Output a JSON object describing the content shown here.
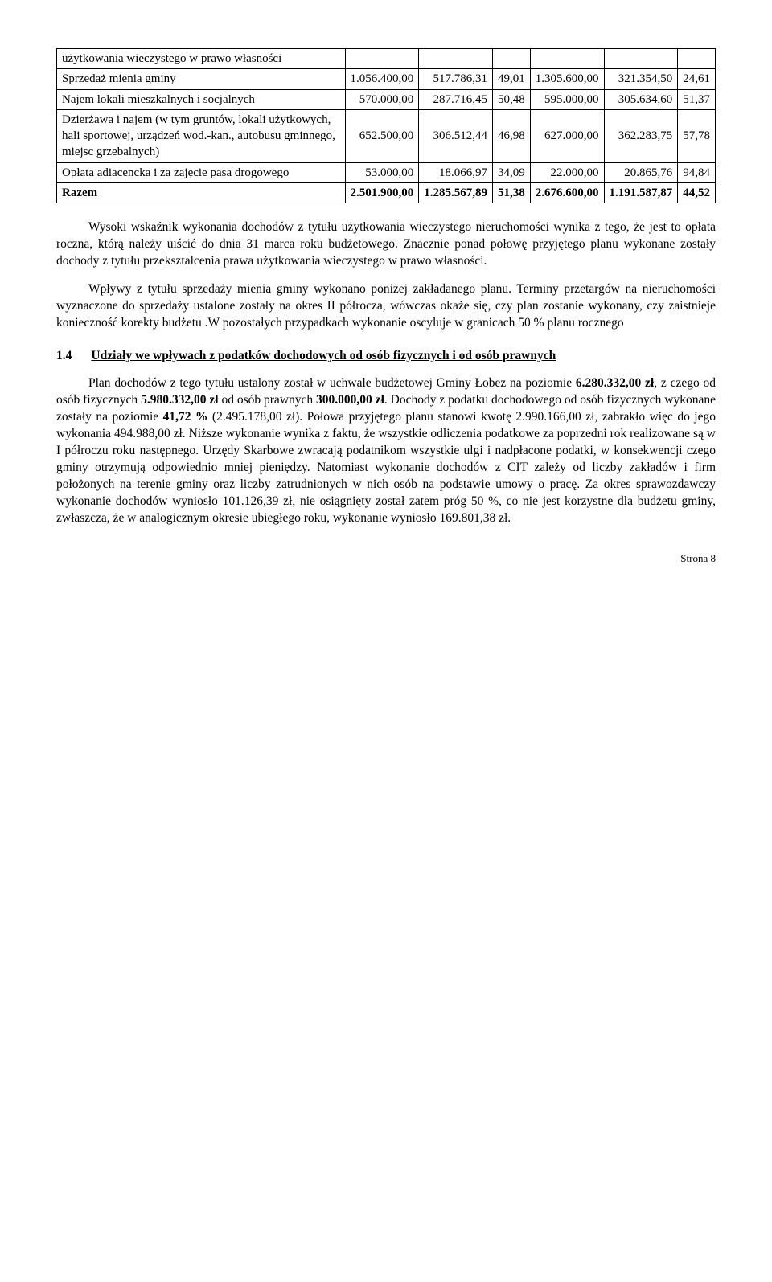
{
  "table": {
    "columns_count": 7,
    "col_align": [
      "left",
      "right",
      "right",
      "right",
      "right",
      "right",
      "right"
    ],
    "rows": [
      {
        "cells": [
          "użytkowania wieczystego w prawo własności",
          "",
          "",
          "",
          "",
          "",
          ""
        ]
      },
      {
        "cells": [
          "Sprzedaż mienia gminy",
          "1.056.400,00",
          "517.786,31",
          "49,01",
          "1.305.600,00",
          "321.354,50",
          "24,61"
        ]
      },
      {
        "cells": [
          "Najem lokali mieszkalnych i socjalnych",
          "570.000,00",
          "287.716,45",
          "50,48",
          "595.000,00",
          "305.634,60",
          "51,37"
        ]
      },
      {
        "cells": [
          "Dzierżawa i najem (w tym gruntów, lokali użytkowych, hali sportowej, urządzeń wod.-kan., autobusu gminnego, miejsc grzebalnych)",
          "652.500,00",
          "306.512,44",
          "46,98",
          "627.000,00",
          "362.283,75",
          "57,78"
        ]
      },
      {
        "cells": [
          "Opłata adiacencka i za zajęcie pasa drogowego",
          "53.000,00",
          "18.066,97",
          "34,09",
          "22.000,00",
          "20.865,76",
          "94,84"
        ]
      },
      {
        "cells": [
          "Razem",
          "2.501.900,00",
          "1.285.567,89",
          "51,38",
          "2.676.600,00",
          "1.191.587,87",
          "44,52"
        ],
        "bold": true
      }
    ]
  },
  "paragraphs": {
    "p1": "Wysoki wskaźnik wykonania dochodów z tytułu użytkowania wieczystego nieruchomości wynika z tego, że jest to opłata roczna, którą należy uiścić do dnia 31 marca roku budżetowego. Znacznie ponad połowę przyjętego planu wykonane zostały dochody z tytułu przekształcenia prawa użytkowania wieczystego w prawo własności.",
    "p2": "Wpływy z tytułu sprzedaży mienia gminy wykonano poniżej zakładanego planu. Terminy przetargów na nieruchomości wyznaczone do sprzedaży ustalone zostały na okres II półrocza, wówczas okaże się, czy plan zostanie wykonany, czy zaistnieje konieczność korekty budżetu .W pozostałych przypadkach wykonanie oscyluje w granicach 50 % planu rocznego"
  },
  "section": {
    "number": "1.4",
    "title_plain": "Udziały we wpływach z podatków dochodowych od osób fizycznych i od osób prawnych"
  },
  "paragraphs2": {
    "p3": "Plan dochodów z tego tytułu ustalony został w uchwale budżetowej Gminy Łobez na poziomie 6.280.332,00 zł, z czego od osób fizycznych 5.980.332,00 zł od osób prawnych 300.000,00 zł. Dochody z podatku dochodowego od osób fizycznych wykonane zostały na poziomie 41,72 % (2.495.178,00 zł). Połowa przyjętego planu stanowi kwotę 2.990.166,00 zł, zabrakło więc do jego wykonania 494.988,00 zł. Niższe wykonanie wynika z faktu, że wszystkie odliczenia podatkowe za poprzedni rok realizowane są w I półroczu roku następnego. Urzędy Skarbowe zwracają podatnikom wszystkie ulgi i nadpłacone podatki, w konsekwencji czego gminy otrzymują odpowiednio mniej pieniędzy. Natomiast wykonanie dochodów z CIT zależy od liczby zakładów i firm położonych na terenie gminy oraz liczby zatrudnionych w nich osób na podstawie umowy o pracę. Za okres sprawozdawczy wykonanie dochodów wyniosło 101.126,39 zł, nie osiągnięty został zatem próg 50 %, co nie jest korzystne dla budżetu gminy, zwłaszcza, że w analogicznym okresie ubiegłego roku, wykonanie wyniosło 169.801,38 zł."
  },
  "footer": "Strona 8",
  "p3_bold_segments": [
    "6.280.332,00 zł",
    "5.980.332,00 zł",
    "300.000,00 zł",
    "41,72 %"
  ]
}
